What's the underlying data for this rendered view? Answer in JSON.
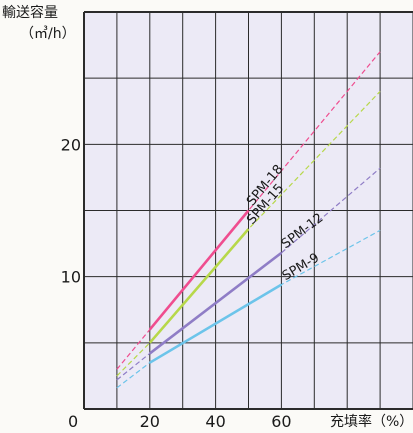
{
  "chart_data": {
    "type": "line",
    "ylabel_line1": "輸送容量",
    "ylabel_line2": "（㎥/h）",
    "xlabel": "充填率（%）",
    "origin_label": "0",
    "xlim": [
      0,
      100
    ],
    "ylim": [
      0,
      30
    ],
    "x_ticks": [
      20,
      40,
      60
    ],
    "y_ticks": [
      10,
      20
    ],
    "plot_bg": "#eceaf6",
    "grid_color": "#2b2b2b",
    "series": [
      {
        "name": "SPM-18",
        "color": "#ef4d8f",
        "solid": [
          [
            20,
            6.0
          ],
          [
            50,
            15.0
          ]
        ],
        "dashed": [
          [
            10,
            3.0
          ],
          [
            20,
            6.0
          ],
          [
            50,
            15.0
          ],
          [
            90,
            27.0
          ]
        ]
      },
      {
        "name": "SPM-15",
        "color": "#b7d84a",
        "solid": [
          [
            20,
            5.0
          ],
          [
            50,
            13.6
          ]
        ],
        "dashed": [
          [
            10,
            2.5
          ],
          [
            20,
            5.0
          ],
          [
            50,
            13.6
          ],
          [
            90,
            24.0
          ]
        ]
      },
      {
        "name": "SPM-12",
        "color": "#8f7dc6",
        "solid": [
          [
            20,
            4.2
          ],
          [
            60,
            11.8
          ]
        ],
        "dashed": [
          [
            10,
            2.2
          ],
          [
            20,
            4.2
          ],
          [
            60,
            11.8
          ],
          [
            90,
            18.2
          ]
        ]
      },
      {
        "name": "SPM-9",
        "color": "#6cc4ea",
        "solid": [
          [
            20,
            3.5
          ],
          [
            60,
            9.4
          ]
        ],
        "dashed": [
          [
            10,
            1.6
          ],
          [
            20,
            3.5
          ],
          [
            60,
            9.4
          ],
          [
            90,
            13.5
          ]
        ]
      }
    ]
  }
}
